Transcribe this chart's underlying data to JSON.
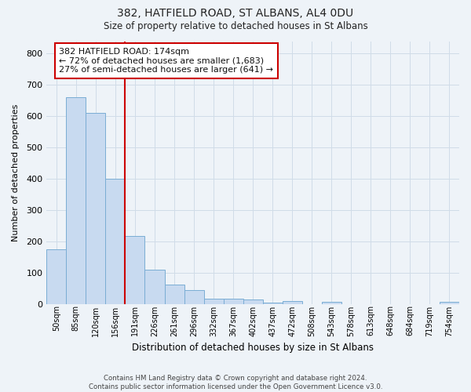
{
  "title": "382, HATFIELD ROAD, ST ALBANS, AL4 0DU",
  "subtitle": "Size of property relative to detached houses in St Albans",
  "xlabel": "Distribution of detached houses by size in St Albans",
  "ylabel": "Number of detached properties",
  "footer_line1": "Contains HM Land Registry data © Crown copyright and database right 2024.",
  "footer_line2": "Contains public sector information licensed under the Open Government Licence v3.0.",
  "categories": [
    "50sqm",
    "85sqm",
    "120sqm",
    "156sqm",
    "191sqm",
    "226sqm",
    "261sqm",
    "296sqm",
    "332sqm",
    "367sqm",
    "402sqm",
    "437sqm",
    "472sqm",
    "508sqm",
    "543sqm",
    "578sqm",
    "613sqm",
    "648sqm",
    "684sqm",
    "719sqm",
    "754sqm"
  ],
  "values": [
    175,
    660,
    610,
    400,
    218,
    110,
    63,
    44,
    18,
    17,
    14,
    5,
    9,
    0,
    8,
    0,
    0,
    0,
    0,
    0,
    7
  ],
  "bar_color": "#c8daf0",
  "bar_edge_color": "#7aadd4",
  "grid_color": "#d0dce8",
  "background_color": "#eef3f8",
  "vline_x_index": 4,
  "vline_color": "#cc0000",
  "annotation_line1": "382 HATFIELD ROAD: 174sqm",
  "annotation_line2": "← 72% of detached houses are smaller (1,683)",
  "annotation_line3": "27% of semi-detached houses are larger (641) →",
  "annotation_box_color": "#ffffff",
  "annotation_box_edge_color": "#cc0000",
  "ylim": [
    0,
    840
  ],
  "yticks": [
    0,
    100,
    200,
    300,
    400,
    500,
    600,
    700,
    800
  ]
}
